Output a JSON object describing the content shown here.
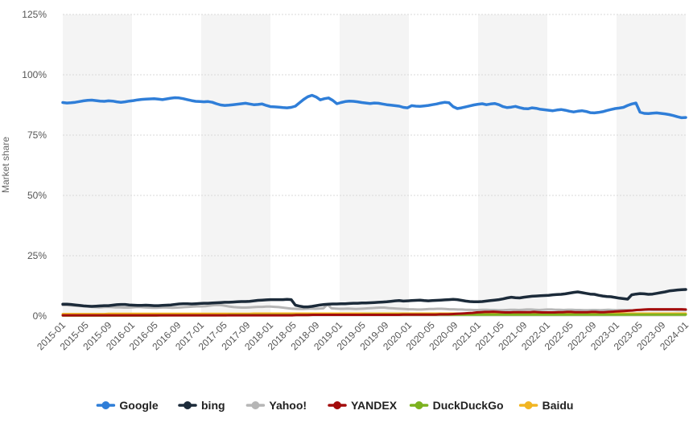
{
  "chart_data": {
    "type": "line",
    "xlabel": "",
    "ylabel": "Market share",
    "ylim": [
      0,
      125
    ],
    "y_ticks": [
      "0%",
      "25%",
      "50%",
      "75%",
      "100%",
      "125%"
    ],
    "y_tick_values": [
      0,
      25,
      50,
      75,
      100,
      125
    ],
    "x_tick_labels": [
      "2015-01",
      "2015-05",
      "2015-09",
      "2016-01",
      "2016-05",
      "2016-09",
      "2017-01",
      "2017-05",
      "2017-09",
      "2018-01",
      "2018-05",
      "2018-09",
      "2019-01",
      "2019-05",
      "2019-09",
      "2020-01",
      "2020-05",
      "2020-09",
      "2021-01",
      "2021-05",
      "2021-09",
      "2022-01",
      "2022-05",
      "2022-09",
      "2023-01",
      "2023-05",
      "2023-09",
      "2024-01"
    ],
    "x_start": "2015-01",
    "x_end": "2024-01",
    "grid": true,
    "legend_position": "bottom-center",
    "series": [
      {
        "name": "Google",
        "color": "#2f7ed8",
        "values": [
          88.5,
          88.3,
          88.4,
          88.6,
          88.9,
          89.2,
          89.4,
          89.5,
          89.3,
          89.1,
          89.0,
          89.2,
          89.1,
          88.8,
          88.6,
          88.8,
          89.1,
          89.3,
          89.6,
          89.8,
          89.9,
          90.0,
          90.1,
          89.9,
          89.7,
          90.0,
          90.3,
          90.5,
          90.4,
          90.1,
          89.7,
          89.3,
          89.0,
          88.9,
          88.8,
          88.9,
          88.6,
          88.0,
          87.5,
          87.3,
          87.4,
          87.6,
          87.8,
          88.0,
          88.2,
          87.9,
          87.6,
          87.7,
          87.9,
          87.3,
          86.8,
          86.7,
          86.6,
          86.4,
          86.3,
          86.5,
          87.0,
          88.4,
          89.8,
          90.9,
          91.5,
          90.8,
          89.6,
          90.1,
          90.4,
          89.4,
          88.0,
          88.5,
          88.9,
          89.1,
          89.0,
          88.8,
          88.5,
          88.3,
          88.1,
          88.3,
          88.2,
          87.9,
          87.6,
          87.4,
          87.2,
          87.0,
          86.5,
          86.3,
          87.2,
          87.0,
          86.9,
          87.1,
          87.3,
          87.6,
          87.9,
          88.3,
          88.6,
          88.4,
          86.8,
          86.0,
          86.3,
          86.7,
          87.1,
          87.5,
          87.8,
          88.0,
          87.6,
          87.9,
          88.1,
          87.6,
          86.8,
          86.4,
          86.6,
          86.9,
          86.4,
          86.0,
          85.9,
          86.3,
          86.1,
          85.7,
          85.5,
          85.3,
          85.1,
          85.4,
          85.6,
          85.3,
          84.9,
          84.6,
          84.9,
          85.1,
          84.8,
          84.3,
          84.2,
          84.4,
          84.7,
          85.2,
          85.6,
          86.0,
          86.2,
          86.5,
          87.3,
          87.9,
          88.3,
          84.5,
          84.0,
          83.9,
          84.1,
          84.2,
          84.0,
          83.8,
          83.5,
          83.1,
          82.6,
          82.2,
          82.3
        ]
      },
      {
        "name": "bing",
        "color": "#1c2b3a",
        "values": [
          4.9,
          4.9,
          4.8,
          4.6,
          4.4,
          4.2,
          4.1,
          4.0,
          4.1,
          4.2,
          4.3,
          4.3,
          4.5,
          4.7,
          4.8,
          4.8,
          4.6,
          4.5,
          4.4,
          4.4,
          4.5,
          4.4,
          4.3,
          4.3,
          4.4,
          4.5,
          4.6,
          4.8,
          5.0,
          5.1,
          5.1,
          5.0,
          5.1,
          5.2,
          5.3,
          5.3,
          5.4,
          5.5,
          5.6,
          5.7,
          5.7,
          5.8,
          5.9,
          6.0,
          6.0,
          6.1,
          6.3,
          6.5,
          6.6,
          6.7,
          6.8,
          6.8,
          6.8,
          6.8,
          6.9,
          6.8,
          4.5,
          4.1,
          3.8,
          3.8,
          4.0,
          4.3,
          4.6,
          4.8,
          4.9,
          5.0,
          5.0,
          5.1,
          5.1,
          5.2,
          5.3,
          5.3,
          5.4,
          5.4,
          5.5,
          5.6,
          5.7,
          5.8,
          5.9,
          6.1,
          6.3,
          6.4,
          6.2,
          6.3,
          6.4,
          6.5,
          6.6,
          6.4,
          6.3,
          6.4,
          6.5,
          6.6,
          6.7,
          6.8,
          6.9,
          6.8,
          6.5,
          6.2,
          6.0,
          5.9,
          5.9,
          6.0,
          6.2,
          6.4,
          6.6,
          6.8,
          7.1,
          7.5,
          7.8,
          7.6,
          7.5,
          7.8,
          8.0,
          8.2,
          8.3,
          8.4,
          8.5,
          8.6,
          8.8,
          8.9,
          9.0,
          9.2,
          9.5,
          9.8,
          10.0,
          9.7,
          9.4,
          9.1,
          9.0,
          8.6,
          8.3,
          8.1,
          8.0,
          7.7,
          7.4,
          7.2,
          7.0,
          8.8,
          9.1,
          9.3,
          9.2,
          9.0,
          9.1,
          9.4,
          9.7,
          10.0,
          10.4,
          10.6,
          10.8,
          10.9,
          11.0
        ]
      },
      {
        "name": "Yahoo!",
        "color": "#b6b6b6",
        "values": [
          4.5,
          4.5,
          4.4,
          4.3,
          4.2,
          4.1,
          4.0,
          3.8,
          3.7,
          3.6,
          3.7,
          3.8,
          3.7,
          3.6,
          3.6,
          3.5,
          3.5,
          3.6,
          3.7,
          3.7,
          3.6,
          3.5,
          3.4,
          3.4,
          3.5,
          3.6,
          3.5,
          3.4,
          3.5,
          3.6,
          3.7,
          3.8,
          3.9,
          4.0,
          4.0,
          4.1,
          4.3,
          4.5,
          4.6,
          4.5,
          4.2,
          3.9,
          3.7,
          3.6,
          3.5,
          3.5,
          3.6,
          3.7,
          3.8,
          3.8,
          3.9,
          3.9,
          3.8,
          3.7,
          3.5,
          3.3,
          3.1,
          3.0,
          2.9,
          2.9,
          3.0,
          3.1,
          3.0,
          3.1,
          3.2,
          4.8,
          3.2,
          3.1,
          3.0,
          3.0,
          3.1,
          3.0,
          2.9,
          3.0,
          3.1,
          3.2,
          3.3,
          3.4,
          3.5,
          3.5,
          3.3,
          3.2,
          3.1,
          3.0,
          2.9,
          2.8,
          2.8,
          2.7,
          2.7,
          2.8,
          2.9,
          2.9,
          3.0,
          3.0,
          2.9,
          2.8,
          2.8,
          2.7,
          2.7,
          2.6,
          2.6,
          2.5,
          2.5,
          2.6,
          2.6,
          2.5,
          2.5,
          2.4,
          2.4,
          2.5,
          2.6,
          2.6,
          2.5,
          2.6,
          2.7,
          2.7,
          2.6,
          2.5,
          2.6,
          2.7,
          2.7,
          2.6,
          2.6,
          2.5,
          2.6,
          2.6,
          2.5,
          2.5,
          2.4,
          2.4,
          2.5,
          2.5,
          2.4,
          2.5,
          2.6,
          2.5,
          2.4,
          2.5,
          2.5,
          2.4,
          2.4,
          2.5,
          2.5,
          2.6,
          2.6,
          2.5,
          2.5,
          2.5,
          2.5,
          2.5,
          2.5,
          2.4,
          2.4,
          2.4
        ]
      },
      {
        "name": "YANDEX",
        "color": "#a30c0c",
        "values": [
          0.3,
          0.3,
          0.3,
          0.3,
          0.3,
          0.3,
          0.3,
          0.3,
          0.3,
          0.3,
          0.3,
          0.3,
          0.3,
          0.3,
          0.3,
          0.3,
          0.3,
          0.3,
          0.3,
          0.3,
          0.3,
          0.3,
          0.3,
          0.3,
          0.3,
          0.3,
          0.3,
          0.3,
          0.3,
          0.3,
          0.3,
          0.3,
          0.3,
          0.3,
          0.3,
          0.3,
          0.3,
          0.3,
          0.3,
          0.3,
          0.3,
          0.3,
          0.3,
          0.3,
          0.3,
          0.3,
          0.3,
          0.3,
          0.3,
          0.3,
          0.3,
          0.3,
          0.3,
          0.3,
          0.3,
          0.3,
          0.3,
          0.4,
          0.4,
          0.4,
          0.4,
          0.5,
          0.5,
          0.5,
          0.5,
          0.5,
          0.5,
          0.5,
          0.5,
          0.5,
          0.5,
          0.5,
          0.5,
          0.5,
          0.5,
          0.5,
          0.5,
          0.5,
          0.5,
          0.5,
          0.5,
          0.5,
          0.5,
          0.6,
          0.6,
          0.6,
          0.6,
          0.6,
          0.6,
          0.6,
          0.6,
          0.6,
          0.7,
          0.7,
          0.7,
          0.8,
          0.9,
          1.0,
          1.1,
          1.2,
          1.3,
          1.5,
          1.6,
          1.7,
          1.7,
          1.8,
          1.7,
          1.6,
          1.5,
          1.5,
          1.6,
          1.6,
          1.6,
          1.6,
          1.6,
          1.7,
          1.6,
          1.5,
          1.5,
          1.5,
          1.5,
          1.6,
          1.6,
          1.7,
          1.7,
          1.6,
          1.6,
          1.6,
          1.6,
          1.7,
          1.7,
          1.6,
          1.6,
          1.7,
          1.8,
          1.9,
          2.0,
          2.1,
          2.2,
          2.3,
          2.5,
          2.6,
          2.7,
          2.8,
          2.8,
          2.8,
          2.8,
          2.8,
          2.8,
          2.8,
          2.8,
          2.8,
          2.7
        ]
      },
      {
        "name": "DuckDuckGo",
        "color": "#7cb21f",
        "values": [
          0.2,
          0.2,
          0.2,
          0.2,
          0.2,
          0.2,
          0.2,
          0.2,
          0.2,
          0.2,
          0.2,
          0.2,
          0.2,
          0.2,
          0.2,
          0.2,
          0.2,
          0.2,
          0.2,
          0.2,
          0.2,
          0.2,
          0.2,
          0.2,
          0.3,
          0.3,
          0.3,
          0.3,
          0.3,
          0.3,
          0.3,
          0.3,
          0.3,
          0.3,
          0.3,
          0.3,
          0.3,
          0.3,
          0.3,
          0.3,
          0.3,
          0.4,
          0.4,
          0.4,
          0.4,
          0.4,
          0.4,
          0.4,
          0.4,
          0.4,
          0.4,
          0.4,
          0.4,
          0.4,
          0.4,
          0.4,
          0.4,
          0.4,
          0.4,
          0.4,
          0.4,
          0.5,
          0.5,
          0.5,
          0.5,
          0.5,
          0.5,
          0.5,
          0.5,
          0.5,
          0.5,
          0.5,
          0.5,
          0.5,
          0.6,
          0.6,
          0.6,
          0.6,
          0.6,
          0.6,
          0.6,
          0.6,
          0.6,
          0.6,
          0.6,
          0.6,
          0.6,
          0.6,
          0.6,
          0.6,
          0.6,
          0.6,
          0.6,
          0.6,
          0.6,
          0.6,
          0.6,
          0.6,
          0.6,
          0.6,
          0.6,
          0.6,
          0.6,
          0.6,
          0.6,
          0.6,
          0.6,
          0.6,
          0.6,
          0.6,
          0.6,
          0.6,
          0.6,
          0.6,
          0.6,
          0.6,
          0.6,
          0.6,
          0.6,
          0.6,
          0.6,
          0.6,
          0.6,
          0.6,
          0.6,
          0.6,
          0.6,
          0.6,
          0.6,
          0.6,
          0.6,
          0.6,
          0.6,
          0.6,
          0.6,
          0.6,
          0.6,
          0.6,
          0.6,
          0.6,
          0.6,
          0.6,
          0.6,
          0.6,
          0.6,
          0.6,
          0.6,
          0.6,
          0.6,
          0.6,
          0.6,
          0.6,
          0.6,
          0.6
        ]
      },
      {
        "name": "Baidu",
        "color": "#f1b522",
        "values": [
          0.8,
          0.8,
          0.8,
          0.8,
          0.8,
          0.8,
          0.8,
          0.8,
          0.8,
          0.8,
          0.8,
          0.9,
          0.9,
          0.9,
          0.9,
          0.9,
          0.9,
          0.9,
          0.9,
          0.9,
          0.9,
          0.9,
          0.9,
          0.9,
          0.9,
          0.9,
          0.9,
          0.9,
          0.9,
          0.9,
          0.9,
          0.9,
          0.9,
          0.9,
          0.9,
          0.9,
          0.9,
          0.9,
          0.9,
          0.9,
          0.9,
          0.9,
          0.9,
          0.9,
          0.9,
          0.9,
          1.0,
          1.0,
          1.0,
          1.0,
          1.0,
          1.0,
          1.0,
          1.0,
          1.0,
          1.0,
          1.0,
          1.0,
          1.0,
          1.0,
          1.0,
          1.0,
          1.0,
          1.0,
          1.0,
          1.0,
          1.0,
          1.0,
          1.0,
          1.0,
          1.0,
          1.0,
          1.0,
          1.0,
          1.0,
          1.0,
          1.0,
          1.0,
          1.0,
          1.0,
          1.0,
          1.0,
          1.0,
          1.0,
          1.0,
          1.0,
          1.0,
          1.0,
          1.0,
          1.0,
          1.0,
          1.0,
          1.0,
          1.0,
          1.0,
          1.0,
          1.0,
          1.0,
          1.0,
          1.0,
          1.0,
          1.0,
          1.0,
          1.0,
          1.0,
          1.0,
          1.0,
          1.0,
          1.0,
          1.0,
          1.0,
          1.0,
          1.0,
          1.0,
          1.0,
          1.0,
          1.0,
          1.0,
          1.0,
          1.0,
          1.0,
          1.0,
          1.0,
          1.0,
          1.0,
          1.0,
          1.0,
          1.0,
          1.0,
          1.0,
          1.0,
          1.0,
          1.0,
          1.0,
          1.0,
          1.0,
          1.0,
          1.0,
          1.0,
          1.0,
          1.0,
          1.0,
          1.0,
          1.0,
          1.0,
          1.0,
          1.0,
          1.0,
          1.0,
          1.0,
          1.0
        ]
      }
    ]
  }
}
